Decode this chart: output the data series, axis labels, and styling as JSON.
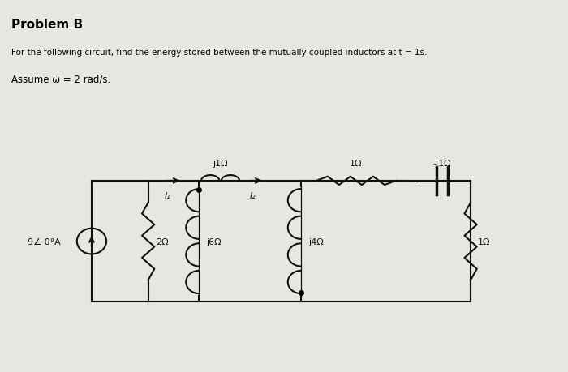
{
  "title": "Problem B",
  "subtitle_line1": "For the following circuit, find the energy stored between the mutually coupled inductors at t = 1s.",
  "subtitle_line2": "Assume ω = 2 rad/s.",
  "background_color": "#e8e6e0",
  "text_color": "#000000",
  "source_label": "9∠ 0°A",
  "labels": {
    "R1": "2Ω",
    "L1": "j6Ω",
    "L_top": "j1Ω",
    "R_top": "1Ω",
    "cap": "-j1Ω",
    "L2": "j4Ω",
    "R2": "1Ω"
  },
  "current_labels": {
    "I1": "I₁",
    "I2": "I₂"
  },
  "figsize": [
    7.0,
    4.6
  ],
  "dpi": 100
}
